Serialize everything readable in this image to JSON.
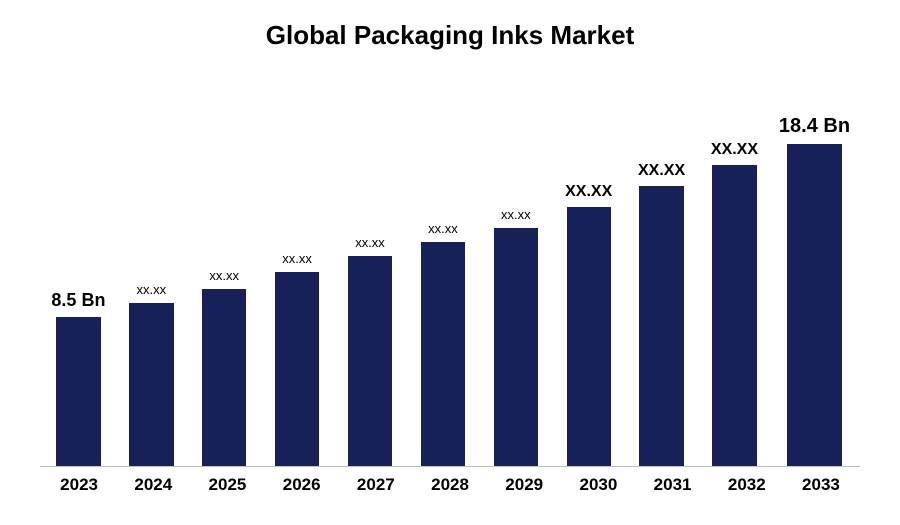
{
  "chart": {
    "type": "bar",
    "title": "Global Packaging Inks Market",
    "title_fontsize": 26,
    "title_fontweight": 700,
    "title_color": "#000000",
    "background_color": "#ffffff",
    "axis_line_color": "#c0c0c0",
    "categories": [
      "2023",
      "2024",
      "2025",
      "2026",
      "2027",
      "2028",
      "2029",
      "2030",
      "2031",
      "2032",
      "2033"
    ],
    "values": [
      8.5,
      9.3,
      10.1,
      11.1,
      12.0,
      12.8,
      13.6,
      14.8,
      16.0,
      17.2,
      18.4
    ],
    "value_labels": [
      "8.5 Bn",
      "xx.xx",
      "xx.xx",
      "xx.xx",
      "xx.xx",
      "xx.xx",
      "xx.xx",
      "XX.XX",
      "XX.XX",
      "XX.XX",
      "18.4 Bn"
    ],
    "label_fontweights": [
      700,
      400,
      400,
      400,
      400,
      400,
      400,
      700,
      700,
      700,
      700
    ],
    "label_fontsizes": [
      18,
      13,
      13,
      13,
      13,
      13,
      13,
      16,
      16,
      16,
      20
    ],
    "bar_color": "#172059",
    "ylim": [
      0,
      22
    ],
    "x_tick_fontsize": 17,
    "x_tick_fontweight": 700,
    "bar_width_ratio": 0.78
  }
}
